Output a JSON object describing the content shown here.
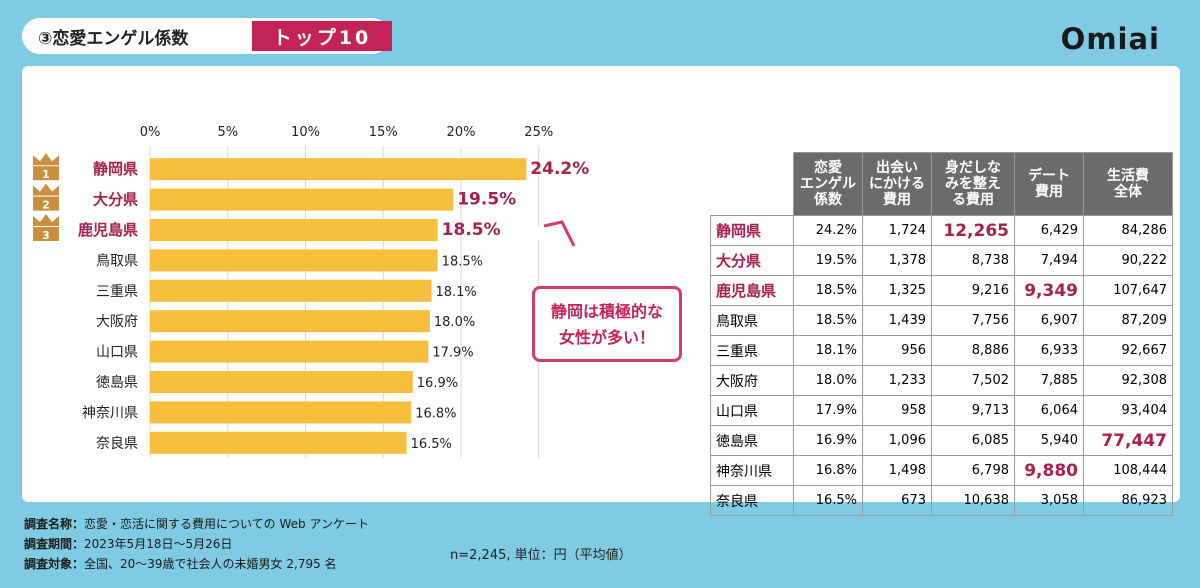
{
  "title": {
    "circle_num": "③",
    "text": "恋愛エンゲル係数",
    "badge": "トップ10"
  },
  "logo": "Omiai",
  "colors": {
    "bar": "#f5be3c",
    "accent": "#c4235a",
    "background": "#7ecbe3",
    "header": "#6b6b6b",
    "crown": "#c9913d"
  },
  "chart_data": {
    "type": "bar",
    "orientation": "horizontal",
    "categories": [
      "静岡県",
      "大分県",
      "鹿児島県",
      "鳥取県",
      "三重県",
      "大阪府",
      "山口県",
      "徳島県",
      "神奈川県",
      "奈良県"
    ],
    "values": [
      24.2,
      19.5,
      18.5,
      18.5,
      18.1,
      18.0,
      17.9,
      16.9,
      16.8,
      16.5
    ],
    "value_labels": [
      "24.2%",
      "19.5%",
      "18.5%",
      "18.5%",
      "18.1%",
      "18.0%",
      "17.9%",
      "16.9%",
      "16.8%",
      "16.5%"
    ],
    "xticks": [
      "0%",
      "5%",
      "10%",
      "15%",
      "20%",
      "25%"
    ],
    "xlim": [
      0,
      25
    ],
    "grid": true,
    "rank_badges": [
      "1",
      "2",
      "3"
    ]
  },
  "callout": {
    "line1": "静岡は積極的な",
    "line2": "女性が多い！"
  },
  "table": {
    "headers": [
      [
        "恋愛",
        "エンゲル",
        "係数"
      ],
      [
        "出会い",
        "にかける",
        "費用"
      ],
      [
        "身だしな",
        "みを整え",
        "る費用"
      ],
      [
        "デート",
        "費用"
      ],
      [
        "生活費",
        "全体"
      ]
    ],
    "rows": [
      {
        "pref": "静岡県",
        "v": [
          "24.2%",
          "1,724",
          "12,265",
          "6,429",
          "84,286"
        ]
      },
      {
        "pref": "大分県",
        "v": [
          "19.5%",
          "1,378",
          "8,738",
          "7,494",
          "90,222"
        ]
      },
      {
        "pref": "鹿児島県",
        "v": [
          "18.5%",
          "1,325",
          "9,216",
          "9,349",
          "107,647"
        ]
      },
      {
        "pref": "鳥取県",
        "v": [
          "18.5%",
          "1,439",
          "7,756",
          "6,907",
          "87,209"
        ]
      },
      {
        "pref": "三重県",
        "v": [
          "18.1%",
          "956",
          "8,886",
          "6,933",
          "92,667"
        ]
      },
      {
        "pref": "大阪府",
        "v": [
          "18.0%",
          "1,233",
          "7,502",
          "7,885",
          "92,308"
        ]
      },
      {
        "pref": "山口県",
        "v": [
          "17.9%",
          "958",
          "9,713",
          "6,064",
          "93,404"
        ]
      },
      {
        "pref": "徳島県",
        "v": [
          "16.9%",
          "1,096",
          "6,085",
          "5,940",
          "77,447"
        ]
      },
      {
        "pref": "神奈川県",
        "v": [
          "16.8%",
          "1,498",
          "6,798",
          "9,880",
          "108,444"
        ]
      },
      {
        "pref": "奈良県",
        "v": [
          "16.5%",
          "673",
          "10,638",
          "3,058",
          "86,923"
        ]
      }
    ]
  },
  "note": "n=2,245, 単位：円（平均値）",
  "survey": {
    "name_key": "調査名称：",
    "name_val": "恋愛・恋活に関する費用についての Web アンケート",
    "period_key": "調査期間：",
    "period_val": "2023年5月18日〜5月26日",
    "target_key": "調査対象：",
    "target_val": "全国、20〜39歳で社会人の未婚男女 2,795 名"
  }
}
